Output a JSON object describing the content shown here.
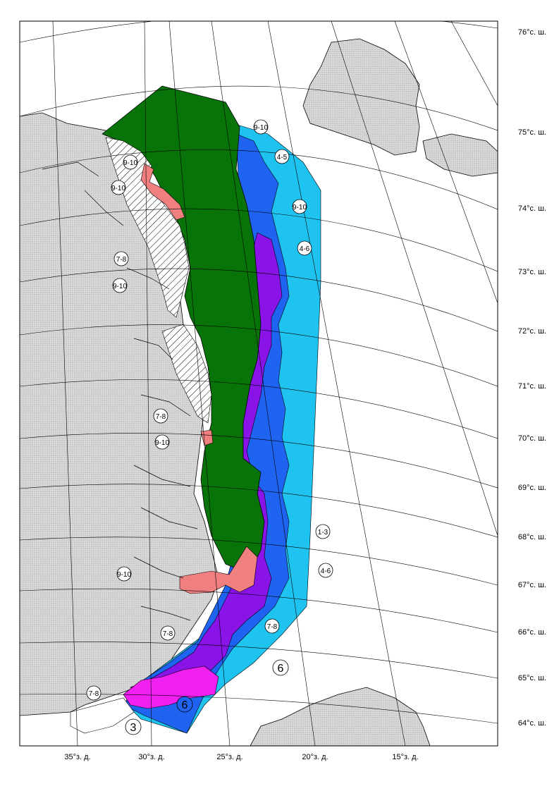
{
  "map": {
    "latitude_labels": [
      "76°с. ш.",
      "75°с. ш.",
      "74°с. ш.",
      "73°с. ш.",
      "72°с. ш.",
      "71°с. ш.",
      "70°с. ш.",
      "69°с. ш.",
      "68°с. ш.",
      "67°с. ш.",
      "66°с. ш.",
      "65°с. ш.",
      "64°с. ш."
    ],
    "longitude_labels": [
      "35°з. д.",
      "30°з. д.",
      "25°з. д.",
      "20°з. д.",
      "15°з. д."
    ],
    "ice_codes": [
      "9-10",
      "4-5",
      "9-10",
      "9-10",
      "9-10",
      "4-6",
      "7-8",
      "9-10",
      "7-8",
      "9-10",
      "1-3",
      "4-6",
      "9-10",
      "7-8",
      "7-8",
      "7-8",
      "6",
      "6",
      "3"
    ],
    "colors": {
      "land": "#d4d4d4",
      "land_outline": "#000000",
      "fast_ice": "#ffffff",
      "green_ice": "#087308",
      "purple_ice": "#8a14e8",
      "blue_ice": "#1e64f0",
      "cyan_ice": "#1ec3f0",
      "pink_ice": "#f08080",
      "magenta_ice": "#f020f0",
      "grid": "#000000"
    }
  }
}
